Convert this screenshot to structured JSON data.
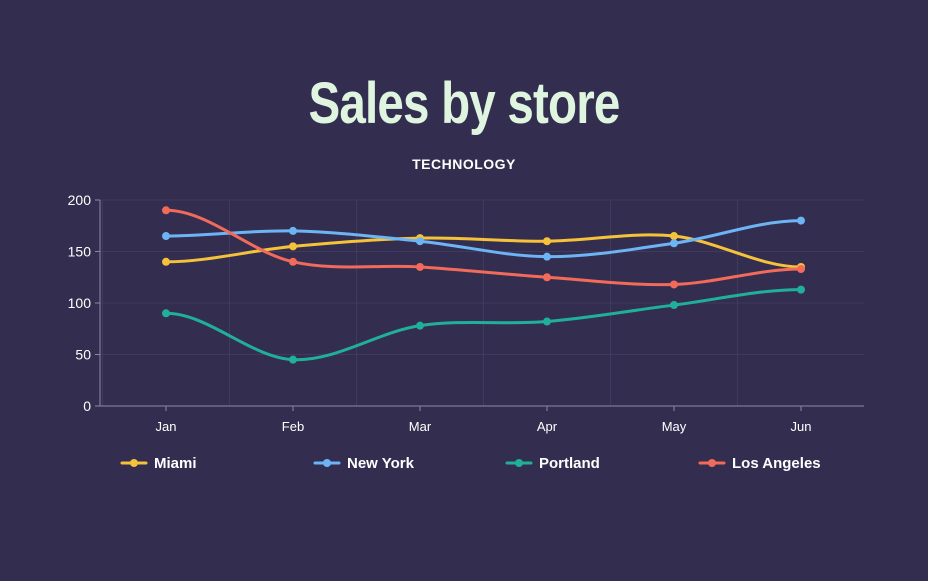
{
  "title": "Sales by store",
  "subtitle": "TECHNOLOGY",
  "colors": {
    "background": "#332e4f",
    "title": "#dff5df",
    "grid": "#3f3a5e",
    "axis": "#8c89a3",
    "tick_text": "#ffffff"
  },
  "chart_data": {
    "type": "line",
    "title": "Sales by store",
    "subtitle": "TECHNOLOGY",
    "xlabel": "",
    "ylabel": "",
    "categories": [
      "Jan",
      "Feb",
      "Mar",
      "Apr",
      "May",
      "Jun"
    ],
    "ylim": [
      0,
      200
    ],
    "yticks": [
      0,
      50,
      100,
      150,
      200
    ],
    "grid": true,
    "smooth": true,
    "legend": "bottom",
    "series": [
      {
        "name": "Miami",
        "color": "#f5c23a",
        "values": [
          140,
          155,
          163,
          160,
          165,
          135
        ]
      },
      {
        "name": "New York",
        "color": "#6db4f5",
        "values": [
          165,
          170,
          160,
          145,
          158,
          180
        ]
      },
      {
        "name": "Portland",
        "color": "#20b09a",
        "values": [
          90,
          45,
          78,
          82,
          98,
          113
        ]
      },
      {
        "name": "Los Angeles",
        "color": "#f26a5a",
        "values": [
          190,
          140,
          135,
          125,
          118,
          133
        ]
      }
    ]
  }
}
